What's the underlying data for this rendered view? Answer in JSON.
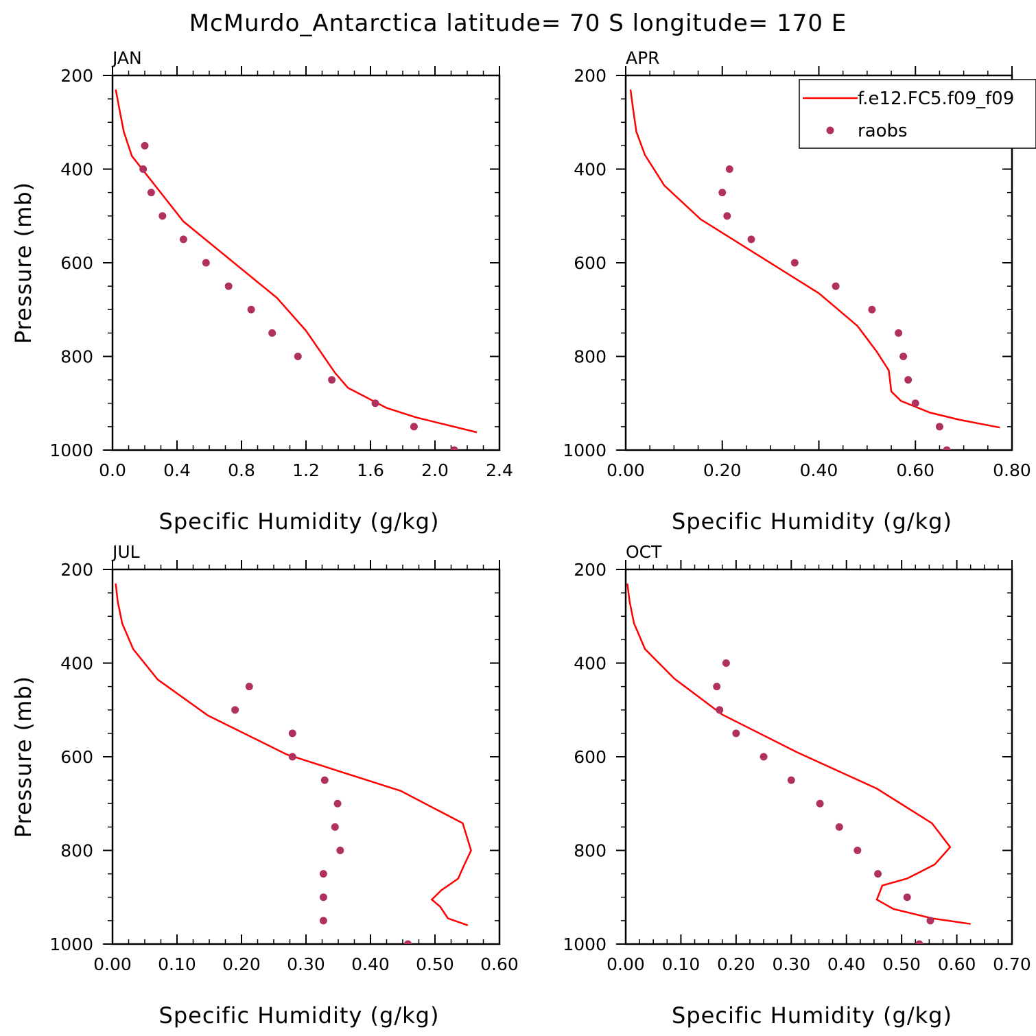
{
  "title": "McMurdo_Antarctica  latitude= 70 S longitude= 170 E",
  "legend": {
    "model_label": "f.e12.FC5.f09_f09",
    "obs_label": "raobs"
  },
  "colors": {
    "model_line": "#ff0000",
    "obs_marker": "#b03060",
    "axes": "#000000",
    "background": "#ffffff"
  },
  "chart_data": [
    {
      "type": "line",
      "panel": "JAN",
      "xlabel": "Specific Humidity (g/kg)",
      "ylabel": "Pressure (mb)",
      "xlim": [
        0.0,
        2.4
      ],
      "ylim": [
        1000,
        200
      ],
      "xticks": [
        "0.0",
        "0.4",
        "0.8",
        "1.2",
        "1.6",
        "2.0",
        "2.4"
      ],
      "yticks": [
        "200",
        "400",
        "600",
        "800",
        "1000"
      ],
      "series": [
        {
          "name": "f.e12.FC5.f09_f09",
          "kind": "line",
          "x": [
            2.26,
            1.88,
            1.7,
            1.46,
            1.38,
            1.3,
            1.2,
            1.02,
            0.44,
            0.12,
            0.07,
            0.04,
            0.02
          ],
          "y": [
            962,
            930,
            910,
            867,
            835,
            795,
            745,
            675,
            512,
            372,
            320,
            267,
            230
          ]
        },
        {
          "name": "raobs",
          "kind": "scatter",
          "x": [
            2.12,
            1.87,
            1.63,
            1.36,
            1.15,
            0.99,
            0.86,
            0.72,
            0.58,
            0.44,
            0.31,
            0.24,
            0.19,
            0.2
          ],
          "y": [
            1000,
            950,
            900,
            850,
            800,
            750,
            700,
            650,
            600,
            550,
            500,
            450,
            400,
            350
          ]
        }
      ]
    },
    {
      "type": "line",
      "panel": "APR",
      "xlabel": "Specific Humidity (g/kg)",
      "ylabel": "",
      "xlim": [
        0.0,
        0.8
      ],
      "ylim": [
        1000,
        200
      ],
      "xticks": [
        "0.00",
        "0.20",
        "0.40",
        "0.60",
        "0.80"
      ],
      "yticks": [
        "200",
        "400",
        "600",
        "800",
        "1000"
      ],
      "series": [
        {
          "name": "f.e12.FC5.f09_f09",
          "kind": "line",
          "x": [
            0.775,
            0.69,
            0.63,
            0.57,
            0.55,
            0.545,
            0.52,
            0.48,
            0.4,
            0.155,
            0.08,
            0.04,
            0.022,
            0.015,
            0.01
          ],
          "y": [
            952,
            935,
            920,
            895,
            875,
            830,
            790,
            735,
            665,
            507,
            435,
            370,
            320,
            270,
            230
          ]
        },
        {
          "name": "raobs",
          "kind": "scatter",
          "x": [
            0.665,
            0.65,
            0.6,
            0.585,
            0.575,
            0.565,
            0.51,
            0.435,
            0.35,
            0.26,
            0.21,
            0.2,
            0.215
          ],
          "y": [
            1000,
            950,
            900,
            850,
            800,
            750,
            700,
            650,
            600,
            550,
            500,
            450,
            400
          ]
        }
      ]
    },
    {
      "type": "line",
      "panel": "JUL",
      "xlabel": "Specific Humidity (g/kg)",
      "ylabel": "Pressure (mb)",
      "xlim": [
        0.0,
        0.6
      ],
      "ylim": [
        1000,
        200
      ],
      "xticks": [
        "0.00",
        "0.10",
        "0.20",
        "0.30",
        "0.40",
        "0.50",
        "0.60"
      ],
      "yticks": [
        "200",
        "400",
        "600",
        "800",
        "1000"
      ],
      "series": [
        {
          "name": "f.e12.FC5.f09_f09",
          "kind": "line",
          "x": [
            0.551,
            0.52,
            0.508,
            0.495,
            0.51,
            0.536,
            0.544,
            0.556,
            0.543,
            0.447,
            0.27,
            0.148,
            0.07,
            0.032,
            0.015,
            0.008,
            0.005
          ],
          "y": [
            960,
            945,
            920,
            905,
            885,
            860,
            835,
            800,
            742,
            673,
            595,
            512,
            435,
            370,
            315,
            268,
            230
          ]
        },
        {
          "name": "raobs",
          "kind": "scatter",
          "x": [
            0.458,
            0.327,
            0.327,
            0.327,
            0.353,
            0.345,
            0.349,
            0.329,
            0.279,
            0.279,
            0.19,
            0.212
          ],
          "y": [
            1000,
            950,
            900,
            850,
            800,
            750,
            700,
            650,
            600,
            550,
            500,
            450
          ]
        }
      ]
    },
    {
      "type": "line",
      "panel": "OCT",
      "xlabel": "Specific Humidity (g/kg)",
      "ylabel": "",
      "xlim": [
        0.0,
        0.7
      ],
      "ylim": [
        1000,
        200
      ],
      "xticks": [
        "0.00",
        "0.10",
        "0.20",
        "0.30",
        "0.40",
        "0.50",
        "0.60",
        "0.70"
      ],
      "yticks": [
        "200",
        "400",
        "600",
        "800",
        "1000"
      ],
      "series": [
        {
          "name": "f.e12.FC5.f09_f09",
          "kind": "line",
          "x": [
            0.625,
            0.555,
            0.485,
            0.455,
            0.465,
            0.51,
            0.56,
            0.588,
            0.555,
            0.455,
            0.31,
            0.175,
            0.088,
            0.035,
            0.015,
            0.007,
            0.003
          ],
          "y": [
            957,
            945,
            925,
            905,
            875,
            860,
            830,
            793,
            742,
            668,
            590,
            510,
            433,
            370,
            315,
            268,
            230
          ]
        },
        {
          "name": "raobs",
          "kind": "scatter",
          "x": [
            0.532,
            0.552,
            0.51,
            0.457,
            0.42,
            0.387,
            0.352,
            0.3,
            0.25,
            0.2,
            0.17,
            0.165,
            0.182
          ],
          "y": [
            1000,
            950,
            900,
            850,
            800,
            750,
            700,
            650,
            600,
            550,
            500,
            450,
            400
          ]
        }
      ]
    }
  ]
}
